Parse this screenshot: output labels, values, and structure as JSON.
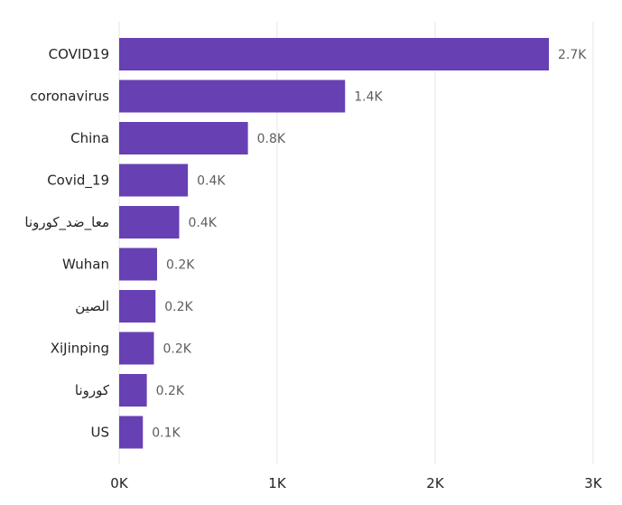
{
  "chart_data": {
    "type": "bar",
    "orientation": "horizontal",
    "categories": [
      "COVID19",
      "coronavirus",
      "China",
      "Covid_19",
      "معا_ضد_كورونا",
      "Wuhan",
      "الصين",
      "XiJinping",
      "كورونا",
      "US"
    ],
    "values": [
      2720,
      1430,
      815,
      435,
      380,
      240,
      230,
      220,
      175,
      150
    ],
    "data_labels": [
      "2.7K",
      "1.4K",
      "0.8K",
      "0.4K",
      "0.4K",
      "0.2K",
      "0.2K",
      "0.2K",
      "0.2K",
      "0.1K"
    ],
    "x_ticks": [
      0,
      1000,
      2000,
      3000
    ],
    "x_tick_labels": [
      "0K",
      "1K",
      "2K",
      "3K"
    ],
    "xlim": [
      0,
      3000
    ],
    "grid": true,
    "title": "",
    "xlabel": "",
    "ylabel": "",
    "colors": {
      "bar": "#6740b4",
      "grid": "#e6e6e6",
      "label": "#252423",
      "value_label": "#605e5c"
    }
  }
}
